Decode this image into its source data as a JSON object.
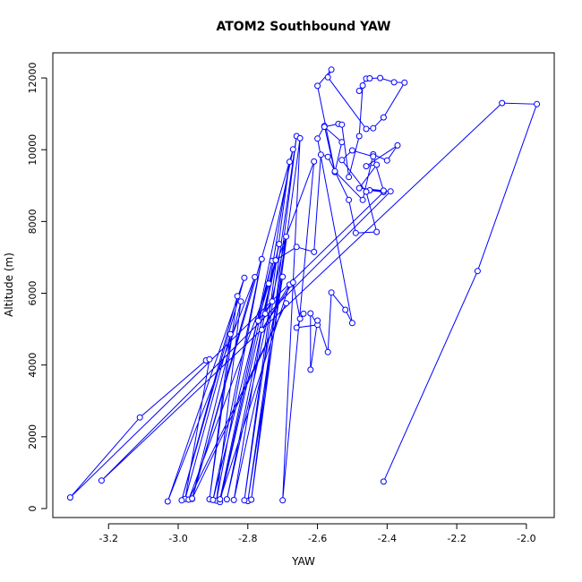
{
  "chart_data": {
    "type": "line",
    "title": "ATOM2 Southbound YAW",
    "xlabel": "YAW",
    "ylabel": "Altitude (m)",
    "xlim": [
      -3.36,
      -1.92
    ],
    "ylim": [
      -250,
      12700
    ],
    "x_ticks": [
      -3.2,
      -3.0,
      -2.8,
      -2.6,
      -2.4,
      -2.2,
      -2.0
    ],
    "x_tick_labels": [
      "-3.2",
      "-3.0",
      "-2.8",
      "-2.6",
      "-2.4",
      "-2.2",
      "-2.0"
    ],
    "y_ticks": [
      0,
      2000,
      4000,
      6000,
      8000,
      10000,
      12000
    ],
    "y_tick_labels": [
      "0",
      "2000",
      "4000",
      "6000",
      "8000",
      "10000",
      "12000"
    ],
    "grid": false,
    "marker": "open-circle",
    "series_color": "#0000ff",
    "series": [
      {
        "points": [
          [
            -2.41,
            750
          ],
          [
            -2.14,
            6620
          ],
          [
            -1.97,
            11270
          ],
          [
            -2.07,
            11300
          ],
          [
            -3.22,
            780
          ],
          [
            -2.39,
            8840
          ],
          [
            -2.45,
            8870
          ],
          [
            -2.41,
            8820
          ],
          [
            -3.31,
            310
          ],
          [
            -3.11,
            2540
          ],
          [
            -2.92,
            4130
          ],
          [
            -2.91,
            4160
          ],
          [
            -2.98,
            270
          ],
          [
            -2.85,
            4860
          ],
          [
            -2.91,
            260
          ],
          [
            -2.83,
            5920
          ],
          [
            -2.99,
            230
          ],
          [
            -2.81,
            6430
          ],
          [
            -3.03,
            200
          ],
          [
            -2.78,
            6450
          ],
          [
            -2.96,
            270
          ],
          [
            -2.82,
            5770
          ],
          [
            -2.89,
            220
          ],
          [
            -2.76,
            6950
          ],
          [
            -2.9,
            240
          ],
          [
            -2.73,
            6900
          ],
          [
            -2.88,
            180
          ],
          [
            -2.71,
            7370
          ],
          [
            -2.86,
            260
          ],
          [
            -2.69,
            7580
          ],
          [
            -2.8,
            210
          ],
          [
            -2.7,
            6460
          ],
          [
            -2.84,
            240
          ],
          [
            -2.68,
            9660
          ],
          [
            -2.81,
            230
          ],
          [
            -2.66,
            10380
          ],
          [
            -2.79,
            250
          ],
          [
            -2.65,
            10320
          ],
          [
            -2.7,
            230
          ],
          [
            -2.61,
            9670
          ],
          [
            -2.97,
            250
          ],
          [
            -2.69,
            5720
          ],
          [
            -2.96,
            280
          ],
          [
            -2.67,
            10010
          ],
          [
            -2.88,
            260
          ],
          [
            -2.68,
            6240
          ],
          [
            -2.76,
            4980
          ],
          [
            -2.67,
            6300
          ],
          [
            -2.65,
            5290
          ],
          [
            -2.64,
            5430
          ],
          [
            -2.66,
            5040
          ],
          [
            -2.6,
            5120
          ],
          [
            -2.62,
            5440
          ],
          [
            -2.62,
            3870
          ],
          [
            -2.6,
            5240
          ],
          [
            -2.57,
            4360
          ],
          [
            -2.56,
            6020
          ],
          [
            -2.52,
            5540
          ],
          [
            -2.5,
            5170
          ],
          [
            -2.6,
            10310
          ],
          [
            -2.58,
            10660
          ],
          [
            -2.55,
            9380
          ],
          [
            -2.53,
            10210
          ],
          [
            -2.58,
            10640
          ],
          [
            -2.54,
            10720
          ],
          [
            -2.53,
            10700
          ],
          [
            -2.51,
            9240
          ],
          [
            -2.48,
            10380
          ],
          [
            -2.47,
            11790
          ],
          [
            -2.48,
            11640
          ],
          [
            -2.46,
            11980
          ],
          [
            -2.45,
            11990
          ],
          [
            -2.42,
            12000
          ],
          [
            -2.38,
            11880
          ],
          [
            -2.35,
            11870
          ],
          [
            -2.41,
            10900
          ],
          [
            -2.44,
            10600
          ],
          [
            -2.46,
            10580
          ],
          [
            -2.57,
            12020
          ],
          [
            -2.56,
            12230
          ],
          [
            -2.6,
            11780
          ],
          [
            -2.55,
            9400
          ],
          [
            -2.47,
            8600
          ],
          [
            -2.44,
            9870
          ],
          [
            -2.4,
            9700
          ],
          [
            -2.37,
            10120
          ],
          [
            -2.46,
            9540
          ],
          [
            -2.43,
            9580
          ],
          [
            -2.48,
            8930
          ],
          [
            -2.41,
            8860
          ],
          [
            -2.44,
            9810
          ],
          [
            -2.5,
            9980
          ],
          [
            -2.53,
            9710
          ],
          [
            -2.46,
            8830
          ],
          [
            -2.43,
            7710
          ],
          [
            -2.49,
            7680
          ],
          [
            -2.51,
            8600
          ],
          [
            -2.57,
            9800
          ],
          [
            -2.59,
            9860
          ],
          [
            -2.61,
            7150
          ],
          [
            -2.66,
            7290
          ],
          [
            -2.72,
            6920
          ],
          [
            -2.74,
            6270
          ],
          [
            -2.77,
            5230
          ],
          [
            -2.73,
            5770
          ],
          [
            -2.75,
            5430
          ]
        ]
      }
    ]
  }
}
